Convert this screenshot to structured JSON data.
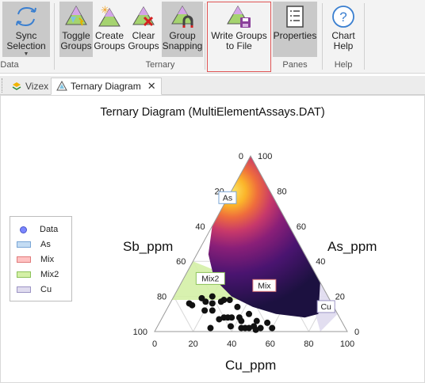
{
  "ribbon": {
    "buttons": [
      {
        "id": "sync",
        "label": "Sync\nSelection",
        "icon": "sync-arrows-icon"
      },
      {
        "id": "toggle",
        "label": "Toggle\nGroups",
        "icon": "toggle-groups-icon"
      },
      {
        "id": "create",
        "label": "Create\nGroups",
        "icon": "create-groups-icon"
      },
      {
        "id": "clear",
        "label": "Clear\nGroups",
        "icon": "clear-groups-icon"
      },
      {
        "id": "snap",
        "label": "Group\nSnapping",
        "icon": "magnet-icon"
      },
      {
        "id": "write",
        "label": "Write Groups\nto File",
        "icon": "save-groups-icon"
      },
      {
        "id": "props",
        "label": "Properties",
        "icon": "properties-icon"
      },
      {
        "id": "help",
        "label": "Chart\nHelp",
        "icon": "help-icon"
      }
    ],
    "groups": {
      "data": "Data",
      "ternary": "Ternary",
      "panes": "Panes",
      "help": "Help"
    }
  },
  "tabs": {
    "vizex": "Vizex",
    "ternary": "Ternary Diagram"
  },
  "chart_data": {
    "type": "scatter",
    "subtype": "ternary",
    "title": "Ternary Diagram (MultiElementAssays.DAT)",
    "axes": {
      "bottom": "Cu_ppm",
      "left": "Sb_ppm",
      "right": "As_ppm"
    },
    "ticks": [
      "0",
      "20",
      "40",
      "60",
      "80",
      "100"
    ],
    "legend": [
      {
        "label": "Data",
        "color": "#7b86ff",
        "kind": "point"
      },
      {
        "label": "As",
        "color": "#c4dcf3",
        "kind": "region"
      },
      {
        "label": "Mix",
        "color": "#ffc2c2",
        "kind": "region"
      },
      {
        "label": "Mix2",
        "color": "#d4f0a6",
        "kind": "region"
      },
      {
        "label": "Cu",
        "color": "#e0dcef",
        "kind": "region"
      }
    ],
    "group_labels": [
      "As",
      "Mix2",
      "Mix",
      "Cu"
    ],
    "density_colormap": [
      "#1c1140",
      "#4a1470",
      "#8a1f78",
      "#c8396a",
      "#ef6d3c",
      "#fbb52a",
      "#fbe86a"
    ],
    "density_peak": {
      "Cu": 0,
      "Sb": 20,
      "As": 80
    },
    "black_points": [
      {
        "Cu": 10,
        "Sb": 74,
        "As": 16
      },
      {
        "Cu": 12,
        "Sb": 73,
        "As": 15
      },
      {
        "Cu": 15,
        "Sb": 66,
        "As": 19
      },
      {
        "Cu": 18,
        "Sb": 65,
        "As": 17
      },
      {
        "Cu": 20,
        "Sb": 68,
        "As": 12
      },
      {
        "Cu": 22,
        "Sb": 62,
        "As": 16
      },
      {
        "Cu": 24,
        "Sb": 64,
        "As": 12
      },
      {
        "Cu": 26,
        "Sb": 57,
        "As": 17
      },
      {
        "Cu": 28,
        "Sb": 70,
        "As": 2
      },
      {
        "Cu": 30,
        "Sb": 63,
        "As": 7
      },
      {
        "Cu": 32,
        "Sb": 60,
        "As": 8
      },
      {
        "Cu": 34,
        "Sb": 58,
        "As": 8
      },
      {
        "Cu": 36,
        "Sb": 56,
        "As": 8
      },
      {
        "Cu": 38,
        "Sb": 59,
        "As": 3
      },
      {
        "Cu": 40,
        "Sb": 52,
        "As": 8
      },
      {
        "Cu": 42,
        "Sb": 52,
        "As": 6
      },
      {
        "Cu": 44,
        "Sb": 54,
        "As": 2
      },
      {
        "Cu": 46,
        "Sb": 52,
        "As": 2
      },
      {
        "Cu": 48,
        "Sb": 50,
        "As": 2
      },
      {
        "Cu": 50,
        "Sb": 47,
        "As": 3
      },
      {
        "Cu": 52,
        "Sb": 47,
        "As": 1
      },
      {
        "Cu": 54,
        "Sb": 44,
        "As": 2
      },
      {
        "Cu": 56,
        "Sb": 39,
        "As": 5
      },
      {
        "Cu": 60,
        "Sb": 38,
        "As": 2
      },
      {
        "Cu": 30,
        "Sb": 52,
        "As": 18
      },
      {
        "Cu": 36,
        "Sb": 50,
        "As": 14
      },
      {
        "Cu": 44,
        "Sb": 46,
        "As": 10
      },
      {
        "Cu": 50,
        "Sb": 44,
        "As": 6
      },
      {
        "Cu": 20,
        "Sb": 60,
        "As": 20
      },
      {
        "Cu": 27,
        "Sb": 55,
        "As": 18
      }
    ]
  }
}
